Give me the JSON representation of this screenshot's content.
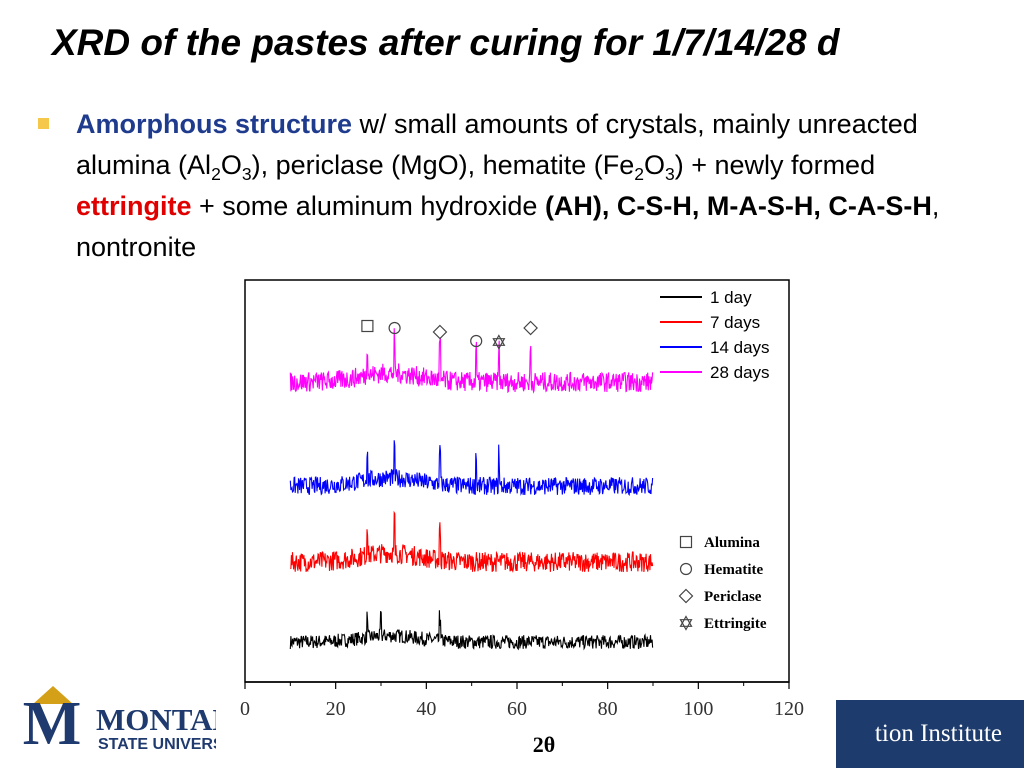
{
  "slide": {
    "title": "XRD of the pastes after curing for 1/7/14/28 d",
    "bullet": {
      "part1": "A",
      "part1b": "morphous structure",
      "part2": " w/ small amounts of crystals, mainly unreacted alumina (Al",
      "sub1": "2",
      "part3": "O",
      "sub2": "3",
      "part4": "), periclase (MgO), hematite (Fe",
      "sub3": "2",
      "part5": "O",
      "sub4": "3",
      "part6": ") + newly formed ",
      "ettringite": "ettringite",
      "part7": " + some aluminum hydroxide ",
      "bold_phases": "(AH), C-S-H, M-A-S-H, C-A-S-H",
      "part8": ", nontronite"
    }
  },
  "logos": {
    "left_word1": "MONTANA",
    "left_word2": "STATE UNIVERSITY",
    "right_text": "tion Institute"
  },
  "chart_data": {
    "type": "line",
    "title": "",
    "xlabel": "2θ",
    "ylabel": "",
    "xlim": [
      0,
      120
    ],
    "x_ticks": [
      0,
      20,
      40,
      60,
      80,
      100,
      120
    ],
    "y_ticks_shown": false,
    "x_range_of_data": [
      10,
      90
    ],
    "legend_position": "top-right",
    "series": [
      {
        "name": "1 day",
        "color": "#000000",
        "major_peaks_2theta": [
          27,
          30,
          43
        ]
      },
      {
        "name": "7 days",
        "color": "#ff0000",
        "major_peaks_2theta": [
          27,
          33,
          43
        ]
      },
      {
        "name": "14 days",
        "color": "#0000ff",
        "major_peaks_2theta": [
          27,
          33,
          43,
          51,
          56
        ]
      },
      {
        "name": "28 days",
        "color": "#ff00ff",
        "major_peaks_2theta": [
          27,
          33,
          43,
          51,
          56,
          63
        ]
      }
    ],
    "phase_markers": [
      {
        "phase": "Alumina",
        "symbol": "square",
        "x": 27
      },
      {
        "phase": "Hematite",
        "symbol": "circle",
        "x": 33
      },
      {
        "phase": "Periclase",
        "symbol": "diamond",
        "x": 43
      },
      {
        "phase": "Hematite",
        "symbol": "circle",
        "x": 51
      },
      {
        "phase": "Ettringite",
        "symbol": "star",
        "x": 56
      },
      {
        "phase": "Periclase",
        "symbol": "diamond",
        "x": 63
      }
    ],
    "phase_legend": [
      {
        "label": "Alumina",
        "symbol": "square"
      },
      {
        "label": "Hematite",
        "symbol": "circle"
      },
      {
        "label": "Periclase",
        "symbol": "diamond"
      },
      {
        "label": "Ettringite",
        "symbol": "star"
      }
    ]
  }
}
